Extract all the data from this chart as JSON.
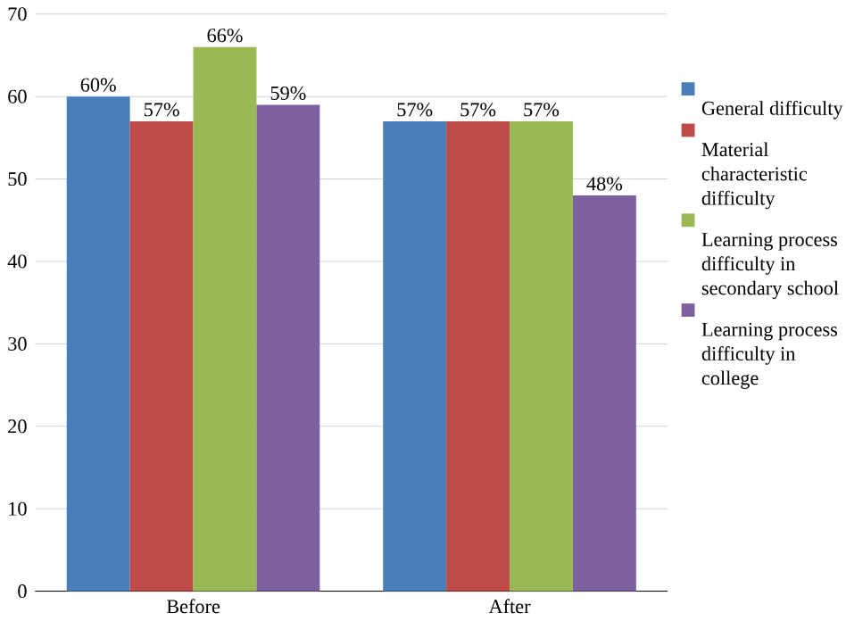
{
  "chart_data": {
    "type": "bar",
    "categories": [
      "Before",
      "After"
    ],
    "series": [
      {
        "name": "General difficulty",
        "color": "#4a7ebb",
        "values": [
          60,
          57
        ],
        "value_labels": [
          "60%",
          "57%"
        ]
      },
      {
        "name": "Material characteristic difficulty",
        "color": "#be4b48",
        "values": [
          57,
          57
        ],
        "value_labels": [
          "57%",
          "57%"
        ]
      },
      {
        "name": "Learning process difficulty in secondary school",
        "color": "#98b954",
        "values": [
          66,
          57
        ],
        "value_labels": [
          "66%",
          "57%"
        ]
      },
      {
        "name": "Learning process difficulty in college",
        "color": "#7d60a0",
        "values": [
          59,
          48
        ],
        "value_labels": [
          "59%",
          "48%"
        ]
      }
    ],
    "ylim": [
      0,
      70
    ],
    "yticks": [
      0,
      10,
      20,
      30,
      40,
      50,
      60,
      70
    ],
    "grid": "y",
    "legend": "right"
  }
}
